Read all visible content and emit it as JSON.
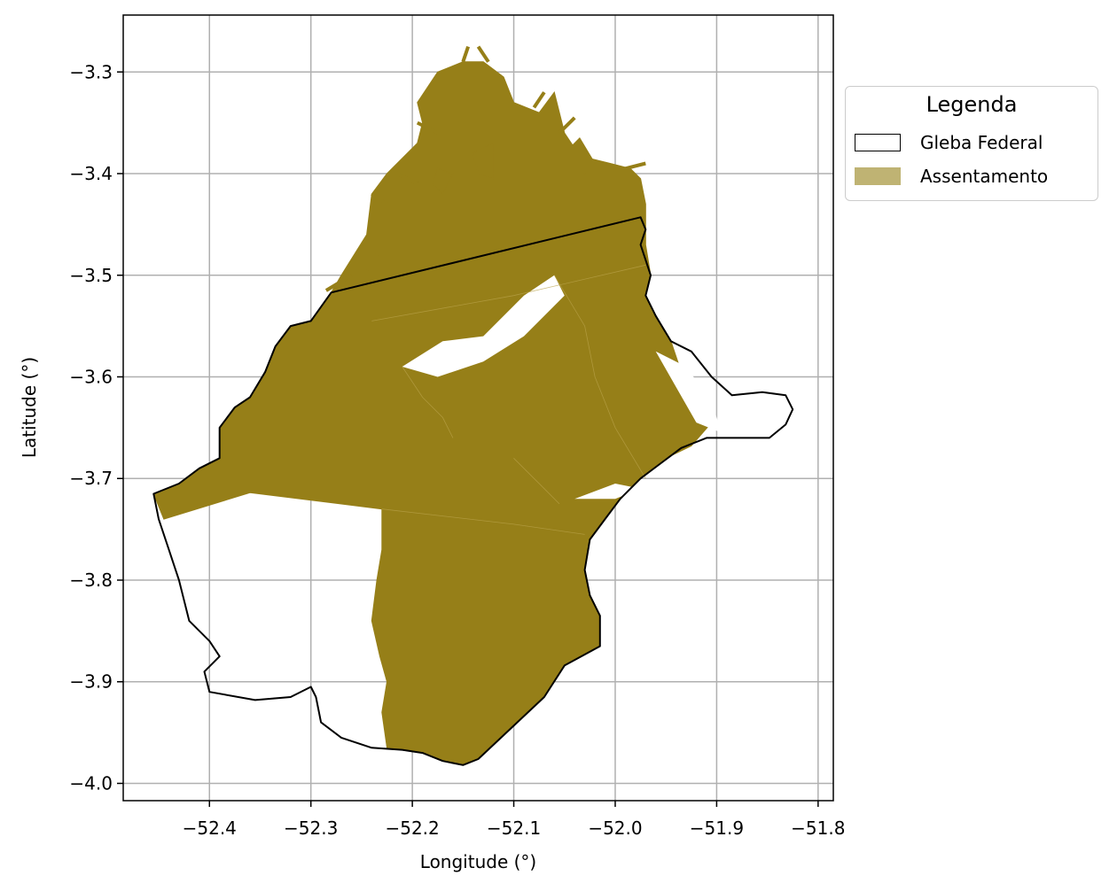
{
  "map": {
    "xlabel": "Longitude (°)",
    "ylabel": "Latitude (°)",
    "xlim": [
      -52.485,
      -51.785
    ],
    "ylim": [
      -4.017,
      -3.244
    ],
    "xticks": [
      -52.4,
      -52.3,
      -52.2,
      -52.1,
      -52.0,
      -51.9,
      -51.8
    ],
    "yticks": [
      -3.3,
      -3.4,
      -3.5,
      -3.6,
      -3.7,
      -3.8,
      -3.9,
      -4.0
    ],
    "xtick_labels": [
      "−52.4",
      "−52.3",
      "−52.2",
      "−52.1",
      "−52.0",
      "−51.9",
      "−51.8"
    ],
    "ytick_labels": [
      "−3.3",
      "−3.4",
      "−3.5",
      "−3.6",
      "−3.7",
      "−3.8",
      "−3.9",
      "−4.0"
    ],
    "grid": true,
    "legend_position": "outside-right-top"
  },
  "legend": {
    "title": "Legenda",
    "items": [
      {
        "label": "Gleba Federal",
        "fill": "#ffffff",
        "edge": "#000000"
      },
      {
        "label": "Assentamento",
        "fill": "#bfb373",
        "edge": "#bfb373"
      }
    ]
  },
  "layers": {
    "gleba_color": "#000000",
    "assentamento_color": "#967f18",
    "gleba_outline": [
      [
        -52.28,
        -3.517
      ],
      [
        -52.3,
        -3.545
      ],
      [
        -52.32,
        -3.55
      ],
      [
        -52.335,
        -3.57
      ],
      [
        -52.345,
        -3.595
      ],
      [
        -52.36,
        -3.62
      ],
      [
        -52.375,
        -3.63
      ],
      [
        -52.39,
        -3.65
      ],
      [
        -52.39,
        -3.68
      ],
      [
        -52.41,
        -3.69
      ],
      [
        -52.43,
        -3.705
      ],
      [
        -52.455,
        -3.715
      ],
      [
        -52.45,
        -3.74
      ],
      [
        -52.44,
        -3.77
      ],
      [
        -52.43,
        -3.8
      ],
      [
        -52.42,
        -3.84
      ],
      [
        -52.4,
        -3.86
      ],
      [
        -52.39,
        -3.875
      ],
      [
        -52.405,
        -3.89
      ],
      [
        -52.4,
        -3.91
      ],
      [
        -52.355,
        -3.918
      ],
      [
        -52.32,
        -3.915
      ],
      [
        -52.3,
        -3.905
      ],
      [
        -52.295,
        -3.915
      ],
      [
        -52.29,
        -3.94
      ],
      [
        -52.27,
        -3.955
      ],
      [
        -52.24,
        -3.965
      ],
      [
        -52.21,
        -3.967
      ],
      [
        -52.19,
        -3.97
      ],
      [
        -52.17,
        -3.978
      ],
      [
        -52.15,
        -3.982
      ],
      [
        -52.135,
        -3.976
      ],
      [
        -52.07,
        -3.915
      ],
      [
        -52.05,
        -3.884
      ],
      [
        -52.015,
        -3.865
      ],
      [
        -52.015,
        -3.835
      ],
      [
        -52.025,
        -3.815
      ],
      [
        -52.03,
        -3.79
      ],
      [
        -52.025,
        -3.76
      ],
      [
        -52.01,
        -3.74
      ],
      [
        -51.995,
        -3.72
      ],
      [
        -51.975,
        -3.7
      ],
      [
        -51.955,
        -3.685
      ],
      [
        -51.935,
        -3.67
      ],
      [
        -51.91,
        -3.66
      ],
      [
        -51.875,
        -3.66
      ],
      [
        -51.848,
        -3.66
      ],
      [
        -51.832,
        -3.647
      ],
      [
        -51.825,
        -3.632
      ],
      [
        -51.832,
        -3.618
      ],
      [
        -51.855,
        -3.615
      ],
      [
        -51.885,
        -3.618
      ],
      [
        -51.905,
        -3.6
      ],
      [
        -51.925,
        -3.575
      ],
      [
        -51.945,
        -3.565
      ],
      [
        -51.96,
        -3.54
      ],
      [
        -51.97,
        -3.52
      ],
      [
        -51.965,
        -3.5
      ],
      [
        -51.975,
        -3.47
      ],
      [
        -51.97,
        -3.455
      ],
      [
        -51.975,
        -3.443
      ],
      [
        -52.28,
        -3.517
      ]
    ],
    "assentamento_main": [
      [
        -52.24,
        -3.42
      ],
      [
        -52.225,
        -3.4
      ],
      [
        -52.195,
        -3.37
      ],
      [
        -52.19,
        -3.35
      ],
      [
        -52.195,
        -3.33
      ],
      [
        -52.175,
        -3.3
      ],
      [
        -52.15,
        -3.29
      ],
      [
        -52.13,
        -3.29
      ],
      [
        -52.11,
        -3.305
      ],
      [
        -52.1,
        -3.33
      ],
      [
        -52.075,
        -3.34
      ],
      [
        -52.06,
        -3.32
      ],
      [
        -52.05,
        -3.36
      ],
      [
        -52.04,
        -3.375
      ],
      [
        -52.025,
        -3.385
      ],
      [
        -52.005,
        -3.39
      ],
      [
        -51.985,
        -3.395
      ],
      [
        -51.975,
        -3.405
      ],
      [
        -51.97,
        -3.43
      ],
      [
        -51.97,
        -3.47
      ],
      [
        -51.965,
        -3.5
      ],
      [
        -51.97,
        -3.52
      ],
      [
        -51.96,
        -3.54
      ],
      [
        -51.945,
        -3.565
      ],
      [
        -51.935,
        -3.595
      ],
      [
        -51.92,
        -3.62
      ],
      [
        -51.905,
        -3.645
      ],
      [
        -51.925,
        -3.668
      ],
      [
        -51.95,
        -3.68
      ],
      [
        -51.975,
        -3.7
      ],
      [
        -51.995,
        -3.72
      ],
      [
        -52.01,
        -3.74
      ],
      [
        -52.025,
        -3.76
      ],
      [
        -52.03,
        -3.79
      ],
      [
        -52.025,
        -3.815
      ],
      [
        -52.015,
        -3.835
      ],
      [
        -52.015,
        -3.865
      ],
      [
        -52.05,
        -3.884
      ],
      [
        -52.07,
        -3.915
      ],
      [
        -52.135,
        -3.976
      ],
      [
        -52.15,
        -3.982
      ],
      [
        -52.17,
        -3.978
      ],
      [
        -52.19,
        -3.97
      ],
      [
        -52.225,
        -3.965
      ],
      [
        -52.23,
        -3.93
      ],
      [
        -52.225,
        -3.9
      ],
      [
        -52.232,
        -3.875
      ],
      [
        -52.24,
        -3.84
      ],
      [
        -52.235,
        -3.8
      ],
      [
        -52.23,
        -3.77
      ],
      [
        -52.23,
        -3.73
      ],
      [
        -52.36,
        -3.714
      ],
      [
        -52.445,
        -3.74
      ],
      [
        -52.455,
        -3.715
      ],
      [
        -52.43,
        -3.705
      ],
      [
        -52.41,
        -3.69
      ],
      [
        -52.39,
        -3.68
      ],
      [
        -52.39,
        -3.65
      ],
      [
        -52.375,
        -3.63
      ],
      [
        -52.36,
        -3.62
      ],
      [
        -52.345,
        -3.595
      ],
      [
        -52.335,
        -3.57
      ],
      [
        -52.32,
        -3.55
      ],
      [
        -52.3,
        -3.545
      ],
      [
        -52.28,
        -3.517
      ],
      [
        -52.27,
        -3.5
      ],
      [
        -52.245,
        -3.46
      ],
      [
        -52.24,
        -3.42
      ]
    ],
    "white_gaps": [
      [
        [
          -52.21,
          -3.59
        ],
        [
          -52.17,
          -3.565
        ],
        [
          -52.13,
          -3.56
        ],
        [
          -52.09,
          -3.52
        ],
        [
          -52.06,
          -3.5
        ],
        [
          -52.05,
          -3.52
        ],
        [
          -52.09,
          -3.56
        ],
        [
          -52.13,
          -3.585
        ],
        [
          -52.175,
          -3.6
        ],
        [
          -52.21,
          -3.59
        ]
      ],
      [
        [
          -51.96,
          -3.575
        ],
        [
          -51.93,
          -3.59
        ],
        [
          -51.905,
          -3.625
        ],
        [
          -51.895,
          -3.655
        ],
        [
          -51.92,
          -3.645
        ],
        [
          -51.94,
          -3.61
        ],
        [
          -51.96,
          -3.575
        ]
      ],
      [
        [
          -52.04,
          -3.72
        ],
        [
          -52.0,
          -3.705
        ],
        [
          -51.975,
          -3.71
        ],
        [
          -52.0,
          -3.72
        ],
        [
          -52.04,
          -3.72
        ]
      ]
    ],
    "fragments": [
      [
        [
          -52.14,
          -3.38
        ],
        [
          -52.12,
          -3.37
        ],
        [
          -52.12,
          -3.405
        ],
        [
          -52.135,
          -3.4
        ],
        [
          -52.14,
          -3.38
        ]
      ],
      [
        [
          -52.175,
          -3.395
        ],
        [
          -52.16,
          -3.4
        ],
        [
          -52.17,
          -3.42
        ],
        [
          -52.18,
          -3.41
        ],
        [
          -52.175,
          -3.395
        ]
      ],
      [
        [
          -52.05,
          -3.38
        ],
        [
          -52.035,
          -3.365
        ],
        [
          -52.02,
          -3.39
        ],
        [
          -52.03,
          -3.4
        ],
        [
          -52.05,
          -3.38
        ]
      ]
    ],
    "spikes": [
      [
        [
          -52.24,
          -3.42
        ],
        [
          -52.225,
          -3.43
        ]
      ],
      [
        [
          -52.215,
          -3.4
        ],
        [
          -52.195,
          -3.41
        ]
      ],
      [
        [
          -52.235,
          -3.48
        ],
        [
          -52.245,
          -3.495
        ]
      ],
      [
        [
          -52.26,
          -3.5
        ],
        [
          -52.285,
          -3.515
        ]
      ],
      [
        [
          -52.195,
          -3.35
        ],
        [
          -52.175,
          -3.36
        ]
      ],
      [
        [
          -52.15,
          -3.29
        ],
        [
          -52.145,
          -3.275
        ]
      ],
      [
        [
          -52.125,
          -3.29
        ],
        [
          -52.135,
          -3.275
        ]
      ],
      [
        [
          -52.08,
          -3.335
        ],
        [
          -52.07,
          -3.32
        ]
      ],
      [
        [
          -52.055,
          -3.36
        ],
        [
          -52.04,
          -3.345
        ]
      ],
      [
        [
          -52.045,
          -3.395
        ],
        [
          -52.03,
          -3.38
        ]
      ],
      [
        [
          -51.99,
          -3.395
        ],
        [
          -51.97,
          -3.39
        ]
      ]
    ],
    "inner_boundaries": [
      [
        [
          -52.24,
          -3.545
        ],
        [
          -52.1,
          -3.52
        ],
        [
          -51.97,
          -3.49
        ]
      ],
      [
        [
          -52.23,
          -3.73
        ],
        [
          -52.1,
          -3.745
        ],
        [
          -52.03,
          -3.755
        ]
      ],
      [
        [
          -52.21,
          -3.59
        ],
        [
          -52.19,
          -3.62
        ],
        [
          -52.17,
          -3.64
        ],
        [
          -52.16,
          -3.66
        ]
      ],
      [
        [
          -52.06,
          -3.5
        ],
        [
          -52.03,
          -3.55
        ],
        [
          -52.02,
          -3.6
        ],
        [
          -52.0,
          -3.65
        ],
        [
          -51.97,
          -3.7
        ]
      ],
      [
        [
          -52.1,
          -3.68
        ],
        [
          -52.07,
          -3.71
        ],
        [
          -52.055,
          -3.725
        ]
      ]
    ]
  }
}
